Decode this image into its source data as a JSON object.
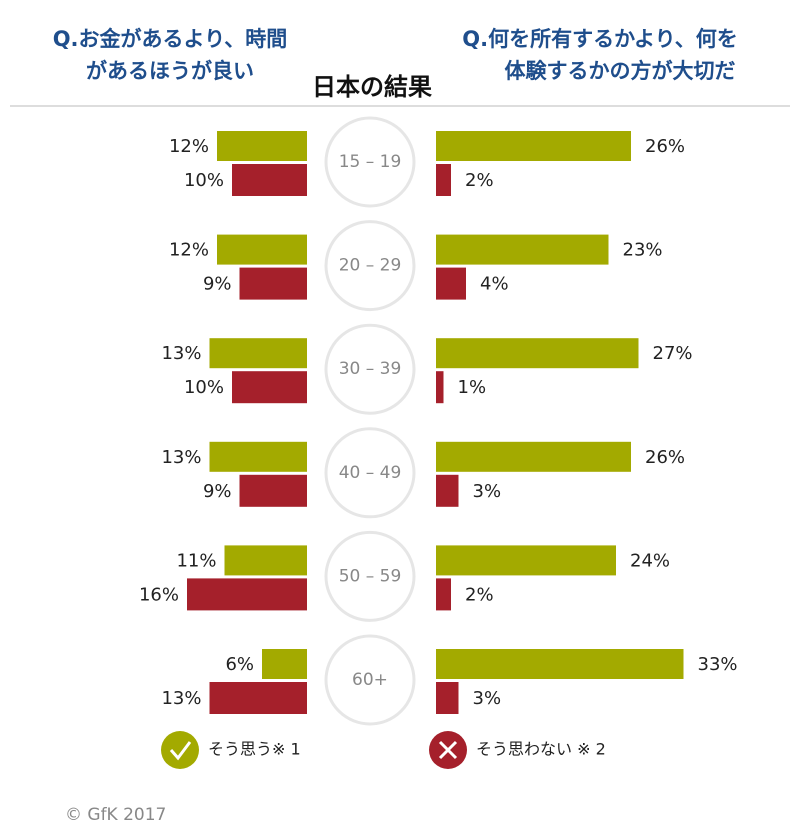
{
  "chart_data": {
    "type": "bar",
    "title": "日本の結果",
    "categories": [
      "15 – 19",
      "20 – 29",
      "30 – 39",
      "40 – 49",
      "50 – 59",
      "60+"
    ],
    "legend": [
      {
        "name": "そう思う※ 1",
        "color": "#a3aa00"
      },
      {
        "name": "そう思わない ※ 2",
        "color": "#a5202b"
      }
    ],
    "panels": [
      {
        "title": [
          "Q.お金があるより、時間",
          "があるほうが良い"
        ],
        "series": [
          {
            "values": [
              12,
              12,
              13,
              13,
              11,
              6
            ],
            "value_labels": [
              "12%",
              "12%",
              "13%",
              "13%",
              "11%",
              "6%"
            ]
          },
          {
            "values": [
              10,
              9,
              10,
              9,
              16,
              13
            ],
            "value_labels": [
              "10%",
              "9%",
              "10%",
              "9%",
              "16%",
              "13%"
            ]
          }
        ]
      },
      {
        "title": [
          "Q.何を所有するかより、何を",
          "体験するかの方が大切だ"
        ],
        "series": [
          {
            "values": [
              26,
              23,
              27,
              26,
              24,
              33
            ],
            "value_labels": [
              "26%",
              "23%",
              "27%",
              "26%",
              "24%",
              "33%"
            ]
          },
          {
            "values": [
              2,
              4,
              1,
              3,
              2,
              3
            ],
            "value_labels": [
              "2%",
              "4%",
              "1%",
              "3%",
              "2%",
              "3%"
            ]
          }
        ]
      }
    ],
    "footer": "© GfK 2017"
  }
}
